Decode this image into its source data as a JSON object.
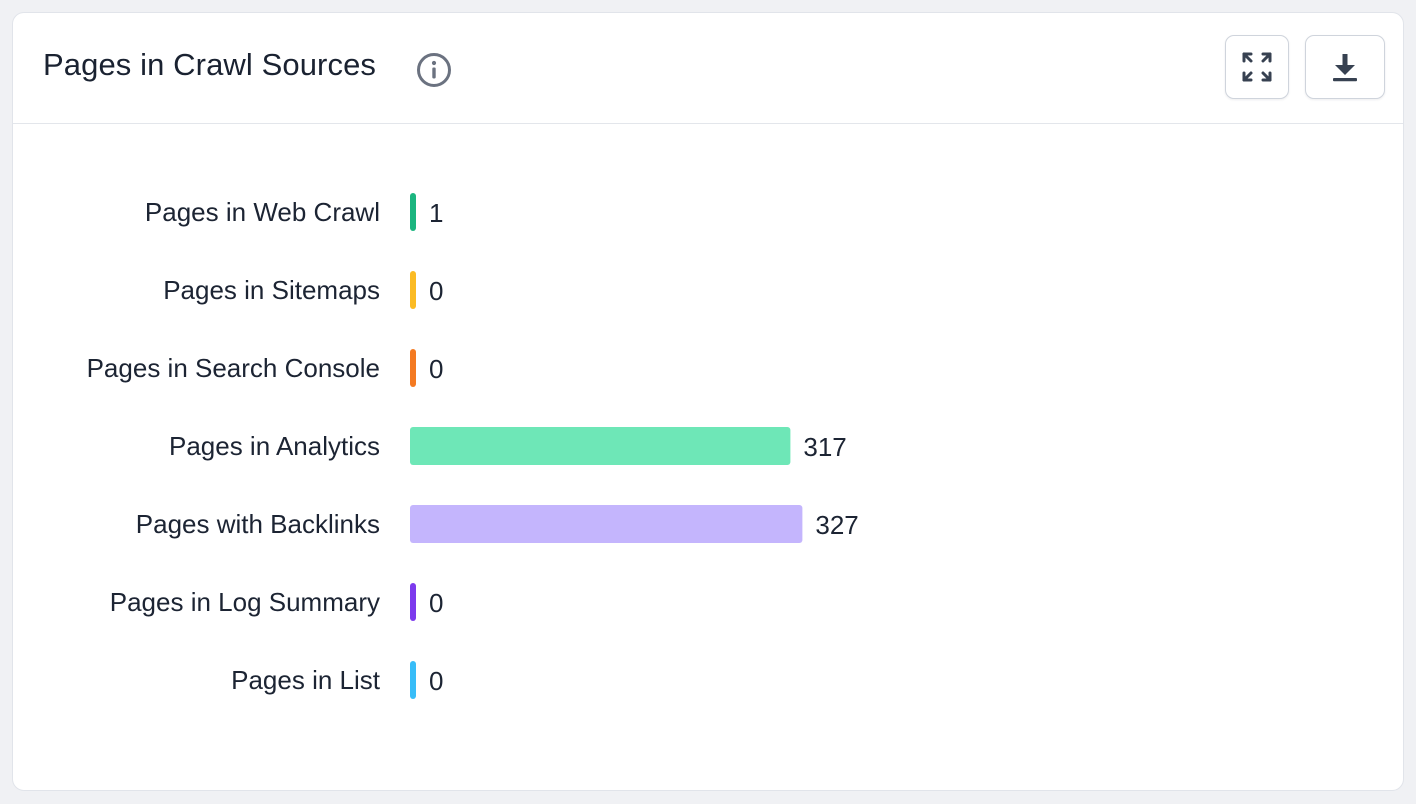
{
  "header": {
    "title": "Pages in Crawl Sources",
    "info_icon": "info-icon",
    "expand_icon": "expand-icon",
    "download_icon": "download-icon"
  },
  "chart_data": {
    "type": "bar",
    "orientation": "horizontal",
    "categories": [
      "Pages in Web Crawl",
      "Pages in Sitemaps",
      "Pages in Search Console",
      "Pages in Analytics",
      "Pages with Backlinks",
      "Pages in Log Summary",
      "Pages in List"
    ],
    "values": [
      1,
      0,
      0,
      317,
      327,
      0,
      0
    ],
    "colors": [
      "#1bb57f",
      "#fbbb24",
      "#f47a22",
      "#6ee7b7",
      "#c4b5fd",
      "#7c3aed",
      "#38bdf8"
    ],
    "xlim": [
      0,
      1000
    ],
    "grid": false,
    "legend": "none",
    "data_labels": true
  }
}
